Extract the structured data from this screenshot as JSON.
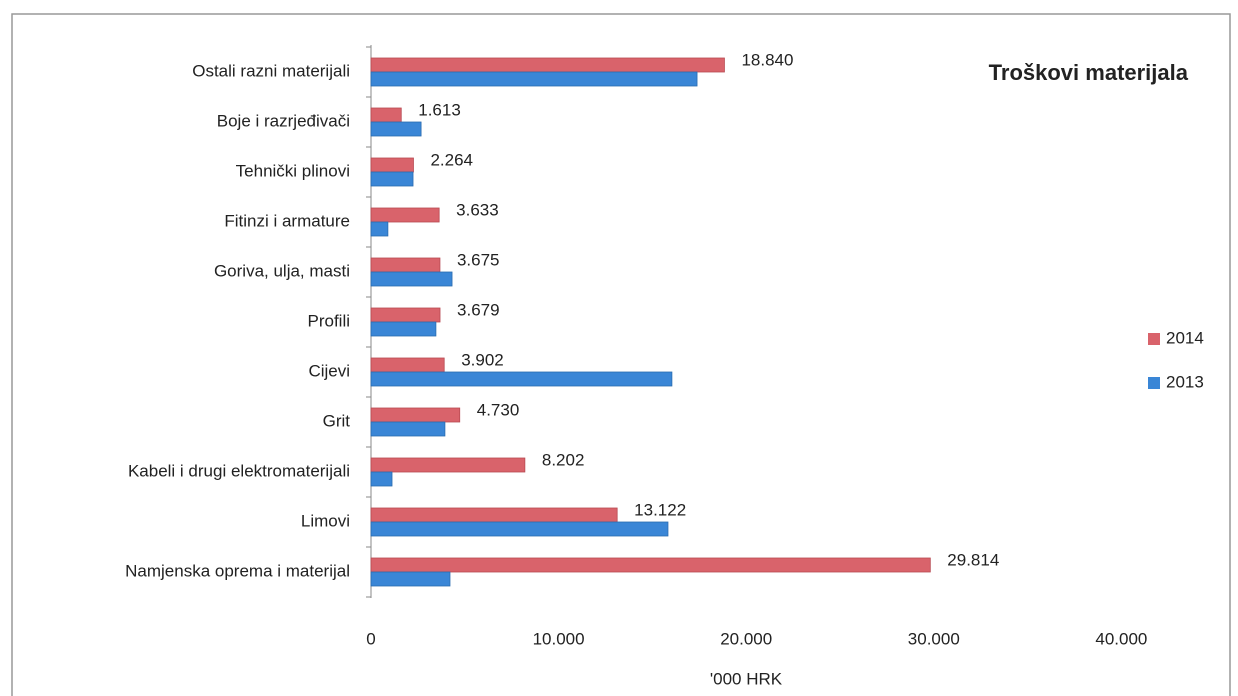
{
  "chart_data": {
    "type": "hbar",
    "title": "Troškovi materijala",
    "x_label": "'000 HRK",
    "categories": [
      "Ostali razni materijali",
      "Boje i razrjeđivači",
      "Tehnički plinovi",
      "Fitinzi i armature",
      "Goriva, ulja, masti",
      "Profili",
      "Cijevi",
      "Grit",
      "Kabeli i drugi elektromaterijali",
      "Limovi",
      "Namjenska oprema i materijal"
    ],
    "series": [
      {
        "name": "2014",
        "color": "#d9636b",
        "values": [
          18840,
          1613,
          2264,
          3633,
          3675,
          3679,
          3902,
          4730,
          8202,
          13122,
          29814
        ],
        "value_labels": [
          "18.840",
          "1.613",
          "2.264",
          "3.633",
          "3.675",
          "3.679",
          "3.902",
          "4.730",
          "8.202",
          "13.122",
          "29.814"
        ]
      },
      {
        "name": "2013",
        "color": "#3a86d6",
        "values": [
          17380,
          2670,
          2240,
          900,
          4320,
          3460,
          16040,
          3940,
          1120,
          15830,
          4210
        ]
      }
    ],
    "xlim": [
      0,
      45000
    ],
    "xticks": [
      0,
      {
        "value": 10000,
        "label": "10.000"
      },
      {
        "value": 20000,
        "label": "20.000"
      },
      {
        "value": 30000,
        "label": "30.000"
      },
      {
        "value": 40000,
        "label": "40.000"
      }
    ],
    "legend": "right"
  }
}
